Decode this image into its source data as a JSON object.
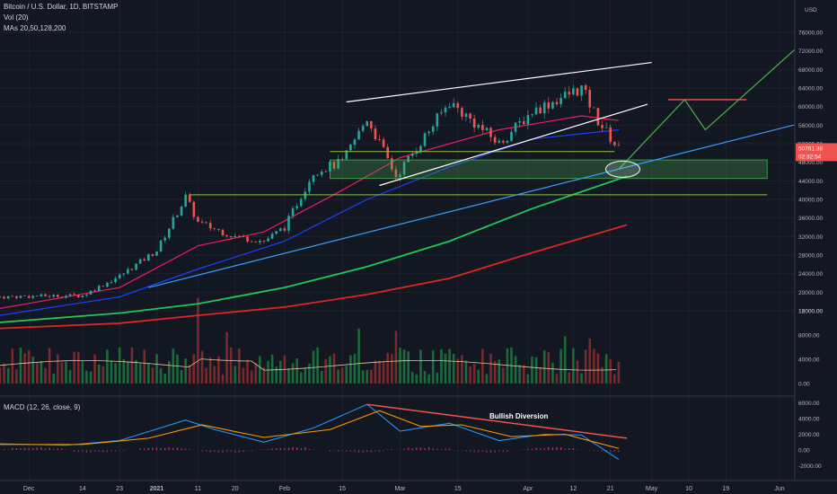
{
  "header": {
    "symbol_line": "Bitcoin / U.S. Dollar, 1D, BITSTAMP",
    "volume_line": "Vol (20)",
    "ma_line": "MAs 20,50,128,200"
  },
  "macd_header": "MACD (12, 26, close, 9)",
  "annotation": "Bullish Diversion",
  "price_axis": {
    "currency": "USD",
    "ticks": [
      "76000.00",
      "72000.00",
      "68000.00",
      "64000.00",
      "60000.00",
      "56000.00",
      "52000.00",
      "48000.00",
      "44000.00",
      "40000.00",
      "36000.00",
      "32000.00",
      "28000.00",
      "24000.00",
      "20000.00",
      "16000.00",
      "12000.00",
      "8000.00",
      "4000.00",
      "0.00"
    ],
    "current_price": "50761.38",
    "countdown": "02:32:54"
  },
  "macd_axis": {
    "ticks": [
      "6000.00",
      "4000.00",
      "2000.00",
      "0.00",
      "-2000.00"
    ]
  },
  "date_axis": [
    "Dec",
    "14",
    "23",
    "2021",
    "11",
    "20",
    "Feb",
    "15",
    "Mar",
    "15",
    "Apr",
    "12",
    "21",
    "May",
    "10",
    "19",
    "Jun"
  ],
  "colors": {
    "background": "#131722",
    "up": "#26a69a",
    "down": "#ef5350",
    "ma20": "#e91e63",
    "ma50": "#1e40ff",
    "ma128": "#22c55e",
    "ma200": "#dc2626",
    "trend_blue": "#3b9cff",
    "projection": "#4caf50",
    "macd_line": "#2196f3",
    "signal_line": "#ff9800"
  },
  "chart_data": {
    "type": "candlestick",
    "title": "Bitcoin / U.S. Dollar, 1D, BITSTAMP",
    "ylabel": "USD",
    "ylim": [
      12000,
      78000
    ],
    "price_path": [
      [
        "2020-11-24",
        19000
      ],
      [
        "2020-12-05",
        19200
      ],
      [
        "2020-12-14",
        19300
      ],
      [
        "2020-12-23",
        23500
      ],
      [
        "2021-01-01",
        29000
      ],
      [
        "2021-01-08",
        40500
      ],
      [
        "2021-01-11",
        35000
      ],
      [
        "2021-01-20",
        32000
      ],
      [
        "2021-01-27",
        31000
      ],
      [
        "2021-02-01",
        34000
      ],
      [
        "2021-02-08",
        46000
      ],
      [
        "2021-02-15",
        48000
      ],
      [
        "2021-02-21",
        57500
      ],
      [
        "2021-02-28",
        45000
      ],
      [
        "2021-03-13",
        61000
      ],
      [
        "2021-03-25",
        52000
      ],
      [
        "2021-04-02",
        59000
      ],
      [
        "2021-04-14",
        64000
      ],
      [
        "2021-04-18",
        57000
      ],
      [
        "2021-04-23",
        50761
      ]
    ],
    "moving_averages": [
      {
        "name": "MA 20",
        "points": [
          [
            "2020-11-24",
            16500
          ],
          [
            "2020-12-23",
            21000
          ],
          [
            "2021-01-11",
            30000
          ],
          [
            "2021-01-27",
            33000
          ],
          [
            "2021-02-15",
            42000
          ],
          [
            "2021-03-01",
            49000
          ],
          [
            "2021-03-25",
            55000
          ],
          [
            "2021-04-14",
            58000
          ],
          [
            "2021-04-23",
            57000
          ]
        ]
      },
      {
        "name": "MA 50",
        "points": [
          [
            "2020-11-24",
            15000
          ],
          [
            "2020-12-23",
            19000
          ],
          [
            "2021-01-11",
            25000
          ],
          [
            "2021-02-01",
            31000
          ],
          [
            "2021-02-21",
            40000
          ],
          [
            "2021-03-13",
            47000
          ],
          [
            "2021-04-02",
            53000
          ],
          [
            "2021-04-23",
            55000
          ]
        ]
      },
      {
        "name": "MA 128",
        "points": [
          [
            "2020-11-24",
            13500
          ],
          [
            "2020-12-23",
            15500
          ],
          [
            "2021-01-11",
            17500
          ],
          [
            "2021-02-01",
            21000
          ],
          [
            "2021-02-21",
            25500
          ],
          [
            "2021-03-13",
            31000
          ],
          [
            "2021-04-02",
            38000
          ],
          [
            "2021-04-25",
            45000
          ]
        ]
      },
      {
        "name": "MA 200",
        "points": [
          [
            "2020-11-24",
            12200
          ],
          [
            "2020-12-23",
            13300
          ],
          [
            "2021-01-11",
            15000
          ],
          [
            "2021-02-01",
            16800
          ],
          [
            "2021-02-21",
            19500
          ],
          [
            "2021-03-13",
            23000
          ],
          [
            "2021-04-02",
            28500
          ],
          [
            "2021-04-25",
            34500
          ]
        ]
      }
    ],
    "annotations": {
      "channel_upper": [
        [
          "2021-02-16",
          61000
        ],
        [
          "2021-05-01",
          69500
        ]
      ],
      "channel_lower": [
        [
          "2021-02-24",
          43000
        ],
        [
          "2021-04-30",
          60500
        ]
      ],
      "support_level_upper": 50300,
      "support_level_lower": 41000,
      "support_zone": [
        44500,
        48500
      ],
      "blue_trendline": [
        [
          "2020-12-30",
          21000
        ],
        [
          "2021-06-20",
          59500
        ]
      ],
      "resistance_line": 61500,
      "projection_path": [
        [
          "2021-04-23",
          46500
        ],
        [
          "2021-05-09",
          61500
        ],
        [
          "2021-05-14",
          55000
        ],
        [
          "2021-06-10",
          76500
        ]
      ]
    },
    "volume_ylim": [
      0,
      16000
    ],
    "macd": {
      "title": "MACD (12, 26, close, 9)",
      "ylim": [
        -2500,
        7000
      ],
      "divergence_line": [
        [
          "2021-02-21",
          5800
        ],
        [
          "2021-04-25",
          1500
        ]
      ],
      "divergence_label": "Bullish Diversion"
    }
  }
}
